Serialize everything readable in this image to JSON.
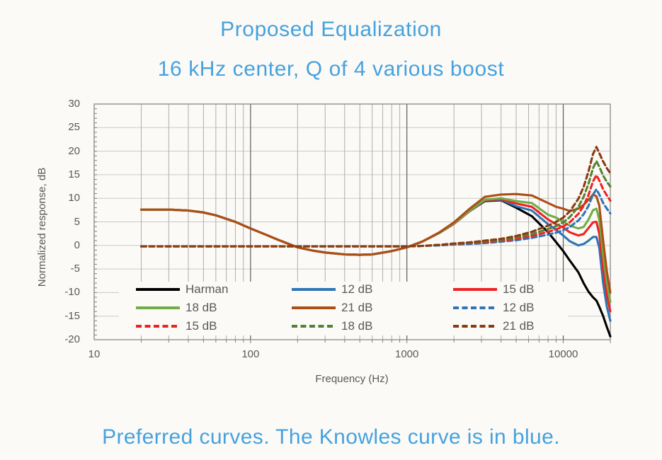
{
  "title": {
    "line1": "Proposed Equalization",
    "line2": "16 kHz center, Q of 4 various boost"
  },
  "caption": "Preferred curves. The Knowles curve is in blue.",
  "colors": {
    "title_blue": "#46a2de",
    "axis_text": "#595959",
    "grid_horizontal": "#c9c9c9",
    "grid_minor_vertical": "#aeaeae",
    "grid_major_vertical": "#5b5b5b",
    "plot_border": "#808080",
    "tick_mark": "#7f7f7f"
  },
  "chart_data": {
    "type": "line",
    "title": "Proposed Equalization — 16 kHz center, Q of 4 various boost",
    "xlabel": "Frequency (Hz)",
    "ylabel": "Normalized response, dB",
    "x_scale": "log",
    "xlim": [
      10,
      20000
    ],
    "ylim": [
      -20,
      30
    ],
    "x_ticks": [
      10,
      100,
      1000,
      10000
    ],
    "x_tick_labels": [
      "10",
      "100",
      "1000",
      "10000"
    ],
    "y_ticks": [
      30,
      25,
      20,
      15,
      10,
      5,
      0,
      -5,
      -10,
      -15,
      -20
    ],
    "grid": true,
    "legend_position": "inside-bottom",
    "frequencies": [
      20,
      25,
      30,
      40,
      50,
      60,
      80,
      100,
      125,
      150,
      200,
      250,
      300,
      400,
      500,
      600,
      800,
      1000,
      1250,
      1600,
      2000,
      2500,
      3150,
      4000,
      5000,
      6300,
      8000,
      9000,
      10000,
      11000,
      12500,
      13500,
      14500,
      15500,
      16300,
      17000,
      18000,
      19000,
      20000
    ],
    "series": [
      {
        "name": "Harman",
        "color": "#000000",
        "dash": false,
        "values": [
          7.6,
          7.6,
          7.6,
          7.4,
          7.0,
          6.4,
          5.0,
          3.6,
          2.3,
          1.2,
          -0.4,
          -1.1,
          -1.5,
          -1.9,
          -2.0,
          -1.9,
          -1.2,
          -0.4,
          0.8,
          2.6,
          4.6,
          7.2,
          9.4,
          9.6,
          8.0,
          6.2,
          2.8,
          0.7,
          -1.2,
          -3.2,
          -5.7,
          -8.0,
          -9.8,
          -11.0,
          -11.7,
          -13.0,
          -15.0,
          -17.3,
          -19.3
        ]
      },
      {
        "name": "12 dB",
        "color": "#2e75b6",
        "dash": false,
        "values": [
          7.6,
          7.6,
          7.6,
          7.4,
          7.0,
          6.4,
          5.0,
          3.6,
          2.3,
          1.2,
          -0.4,
          -1.1,
          -1.5,
          -1.9,
          -2.0,
          -1.9,
          -1.2,
          -0.4,
          0.8,
          2.6,
          4.6,
          7.2,
          9.5,
          9.7,
          8.3,
          7.4,
          4.5,
          3.3,
          2.1,
          0.9,
          0.0,
          0.3,
          1.0,
          1.8,
          1.8,
          -0.5,
          -8.0,
          -13.0,
          -16.0
        ]
      },
      {
        "name": "15 dB",
        "color": "#ee2222",
        "dash": false,
        "values": [
          7.6,
          7.6,
          7.6,
          7.4,
          7.0,
          6.4,
          5.0,
          3.6,
          2.3,
          1.2,
          -0.4,
          -1.1,
          -1.5,
          -1.9,
          -2.0,
          -1.9,
          -1.2,
          -0.4,
          0.8,
          2.6,
          4.6,
          7.2,
          9.6,
          9.8,
          8.9,
          8.2,
          5.5,
          4.5,
          3.8,
          2.8,
          2.1,
          2.4,
          3.7,
          4.9,
          5.0,
          2.5,
          -5.0,
          -10.5,
          -14.0
        ]
      },
      {
        "name": "18 dB",
        "color": "#70ad47",
        "dash": false,
        "values": [
          7.6,
          7.6,
          7.6,
          7.4,
          7.0,
          6.4,
          5.0,
          3.6,
          2.3,
          1.2,
          -0.4,
          -1.1,
          -1.5,
          -1.9,
          -2.0,
          -1.9,
          -1.2,
          -0.4,
          0.8,
          2.6,
          4.7,
          7.3,
          9.7,
          10.0,
          9.4,
          9.0,
          6.5,
          5.9,
          5.0,
          4.2,
          3.6,
          3.9,
          5.5,
          7.5,
          7.8,
          5.5,
          -2.0,
          -8.0,
          -12.0
        ]
      },
      {
        "name": "21 dB",
        "color": "#ac4e16",
        "dash": false,
        "values": [
          7.6,
          7.6,
          7.6,
          7.4,
          7.0,
          6.4,
          5.0,
          3.6,
          2.3,
          1.2,
          -0.4,
          -1.1,
          -1.5,
          -1.9,
          -2.0,
          -1.9,
          -1.2,
          -0.4,
          0.8,
          2.7,
          4.9,
          7.7,
          10.3,
          10.8,
          10.9,
          10.6,
          9.0,
          8.2,
          7.8,
          7.3,
          7.8,
          8.6,
          9.7,
          10.8,
          10.4,
          8.5,
          1.0,
          -5.5,
          -10.0
        ]
      },
      {
        "name": "12 dB",
        "color": "#2e75b6",
        "dash": true,
        "values": [
          -0.2,
          -0.2,
          -0.2,
          -0.2,
          -0.2,
          -0.2,
          -0.2,
          -0.2,
          -0.2,
          -0.2,
          -0.2,
          -0.2,
          -0.2,
          -0.2,
          -0.2,
          -0.2,
          -0.2,
          -0.2,
          -0.1,
          0.0,
          0.2,
          0.3,
          0.5,
          0.8,
          1.1,
          1.6,
          2.3,
          2.7,
          3.2,
          3.9,
          5.3,
          6.6,
          8.4,
          10.8,
          11.9,
          10.8,
          9.0,
          7.8,
          6.8
        ]
      },
      {
        "name": "15 dB",
        "color": "#ee2222",
        "dash": true,
        "values": [
          -0.2,
          -0.2,
          -0.2,
          -0.2,
          -0.2,
          -0.2,
          -0.2,
          -0.2,
          -0.2,
          -0.2,
          -0.2,
          -0.2,
          -0.2,
          -0.2,
          -0.2,
          -0.2,
          -0.2,
          -0.2,
          -0.1,
          0.1,
          0.3,
          0.5,
          0.7,
          1.0,
          1.4,
          2.0,
          2.9,
          3.4,
          4.0,
          4.9,
          6.7,
          8.4,
          10.7,
          13.6,
          14.9,
          13.8,
          11.9,
          10.6,
          9.5
        ]
      },
      {
        "name": "18 dB",
        "color": "#548235",
        "dash": true,
        "values": [
          -0.2,
          -0.2,
          -0.2,
          -0.2,
          -0.2,
          -0.2,
          -0.2,
          -0.2,
          -0.2,
          -0.2,
          -0.2,
          -0.2,
          -0.2,
          -0.2,
          -0.2,
          -0.2,
          -0.2,
          -0.2,
          -0.1,
          0.1,
          0.35,
          0.55,
          0.85,
          1.2,
          1.7,
          2.4,
          3.5,
          4.1,
          4.9,
          6.0,
          8.2,
          10.3,
          13.1,
          16.4,
          17.9,
          16.7,
          14.8,
          13.5,
          12.5
        ]
      },
      {
        "name": "21 dB",
        "color": "#8a3c10",
        "dash": true,
        "values": [
          -0.2,
          -0.2,
          -0.2,
          -0.2,
          -0.2,
          -0.2,
          -0.2,
          -0.2,
          -0.2,
          -0.2,
          -0.2,
          -0.2,
          -0.2,
          -0.2,
          -0.2,
          -0.2,
          -0.2,
          -0.2,
          -0.1,
          0.1,
          0.4,
          0.65,
          1.0,
          1.4,
          2.0,
          2.9,
          4.2,
          5.0,
          5.9,
          7.2,
          9.9,
          12.4,
          15.7,
          19.4,
          20.9,
          19.6,
          17.8,
          16.4,
          15.3
        ]
      }
    ]
  }
}
